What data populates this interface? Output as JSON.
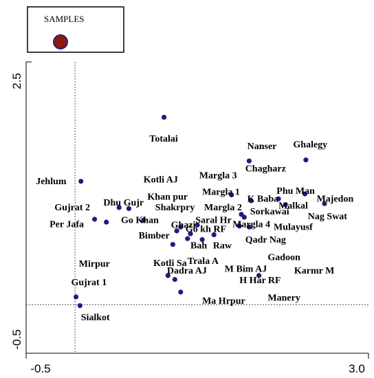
{
  "chart_data": {
    "type": "scatter",
    "title": "",
    "xlabel": "",
    "ylabel": "",
    "xlim": [
      -0.5,
      3.0
    ],
    "ylim": [
      -0.5,
      2.5
    ],
    "x_ticks": [
      "-0.5",
      "3.0"
    ],
    "y_ticks": [
      "2.5",
      "-0.5"
    ],
    "reference_lines": {
      "x": 0.0,
      "y": 0.0
    },
    "grid": false,
    "legend": {
      "title": "SAMPLES",
      "placement": "top-left",
      "marker_color": "#8b1a10"
    },
    "marker_color": "#2a1580",
    "points": [
      {
        "label": "Totalai",
        "x": 0.91,
        "y": 1.93
      },
      {
        "label": "Jehlum",
        "x": 0.06,
        "y": 1.27
      },
      {
        "label": "Ghalegy",
        "x": 2.36,
        "y": 1.49
      },
      {
        "label": "Nanser",
        "x": 1.78,
        "y": 1.48
      },
      {
        "label": "Majedon",
        "x": 2.55,
        "y": 1.04
      },
      {
        "label": "Phu Man",
        "x": 2.35,
        "y": 1.14
      },
      {
        "label": "Malkal",
        "x": 2.15,
        "y": 1.03
      },
      {
        "label": "K Baba",
        "x": 1.8,
        "y": 1.07
      },
      {
        "label": "Nag Swat",
        "x": 2.08,
        "y": 1.09
      },
      {
        "label": "Margla 1",
        "x": 1.6,
        "y": 1.13
      },
      {
        "label": "Gujrat 2",
        "x": 0.2,
        "y": 0.88
      },
      {
        "label": "Per Jafa",
        "x": 0.32,
        "y": 0.85
      },
      {
        "label": "Dhu Gujr",
        "x": 0.45,
        "y": 1.0
      },
      {
        "label": "Go Khan",
        "x": 0.55,
        "y": 0.99
      },
      {
        "label": "Khan pur",
        "x": 0.7,
        "y": 0.87
      },
      {
        "label": "Sorkawai",
        "x": 1.7,
        "y": 0.93
      },
      {
        "label": "Margla 2",
        "x": 1.73,
        "y": 0.9
      },
      {
        "label": "Mulayusf",
        "x": 1.78,
        "y": 0.8
      },
      {
        "label": "Margla 4",
        "x": 1.68,
        "y": 0.81
      },
      {
        "label": "Shakrpry",
        "x": 1.25,
        "y": 0.82
      },
      {
        "label": "Saral Hr",
        "x": 1.18,
        "y": 0.73
      },
      {
        "label": "Ghazi",
        "x": 1.08,
        "y": 0.8
      },
      {
        "label": "Go kh RF",
        "x": 1.3,
        "y": 0.67
      },
      {
        "label": "Bimber",
        "x": 1.0,
        "y": 0.62
      },
      {
        "label": "Raw",
        "x": 1.42,
        "y": 0.72
      },
      {
        "label": "Bah",
        "x": 1.15,
        "y": 0.68
      },
      {
        "label": "Qadr Nag",
        "x": 1.88,
        "y": 0.3
      },
      {
        "label": "Trala A",
        "x": 1.04,
        "y": 0.76
      },
      {
        "label": "Kotli Sa",
        "x": 0.95,
        "y": 0.3
      },
      {
        "label": "Dadra AJ",
        "x": 1.02,
        "y": 0.26
      },
      {
        "label": "Mirpur",
        "x": 1.08,
        "y": 0.13
      },
      {
        "label": "Gujrat 1",
        "x": 0.01,
        "y": 0.08
      },
      {
        "label": "Sialkot",
        "x": 0.05,
        "y": -0.01
      }
    ],
    "labels": [
      {
        "text": "Totalai",
        "x": 0.76,
        "y": 1.68
      },
      {
        "text": "Kotli AJ",
        "x": 0.7,
        "y": 1.26
      },
      {
        "text": "Margla 3",
        "x": 1.27,
        "y": 1.3
      },
      {
        "text": "Nanser",
        "x": 1.76,
        "y": 1.6
      },
      {
        "text": "Ghalegy",
        "x": 2.23,
        "y": 1.62
      },
      {
        "text": "Chagharz",
        "x": 1.74,
        "y": 1.37
      },
      {
        "text": "Jehlum",
        "x": -0.4,
        "y": 1.24
      },
      {
        "text": "Margla 1",
        "x": 1.3,
        "y": 1.13
      },
      {
        "text": "Khan pur",
        "x": 0.74,
        "y": 1.08
      },
      {
        "text": "K Baba",
        "x": 1.76,
        "y": 1.06
      },
      {
        "text": "Phu Man",
        "x": 2.06,
        "y": 1.14
      },
      {
        "text": "Majedon",
        "x": 2.47,
        "y": 1.06
      },
      {
        "text": "Malkal",
        "x": 2.08,
        "y": 0.99
      },
      {
        "text": "Dhu Gujr",
        "x": 0.29,
        "y": 1.02
      },
      {
        "text": "Gujrat 2",
        "x": -0.21,
        "y": 0.97
      },
      {
        "text": "Shakrpry",
        "x": 0.82,
        "y": 0.97
      },
      {
        "text": "Margla 2",
        "x": 1.32,
        "y": 0.97
      },
      {
        "text": "Sorkawai",
        "x": 1.79,
        "y": 0.93
      },
      {
        "text": "Nag Swat",
        "x": 2.38,
        "y": 0.88
      },
      {
        "text": "Go Khan",
        "x": 0.47,
        "y": 0.84
      },
      {
        "text": "Per Jafa",
        "x": -0.26,
        "y": 0.8
      },
      {
        "text": "Saral Hr",
        "x": 1.23,
        "y": 0.84
      },
      {
        "text": "Ghazi",
        "x": 0.98,
        "y": 0.79
      },
      {
        "text": "Margla 4",
        "x": 1.61,
        "y": 0.8
      },
      {
        "text": "Mulayusf",
        "x": 2.03,
        "y": 0.77
      },
      {
        "text": "Go kh RF",
        "x": 1.13,
        "y": 0.75
      },
      {
        "text": "Bimber",
        "x": 0.65,
        "y": 0.68
      },
      {
        "text": "Qadr Nag",
        "x": 1.74,
        "y": 0.64
      },
      {
        "text": "Bah",
        "x": 1.18,
        "y": 0.58
      },
      {
        "text": "Raw",
        "x": 1.41,
        "y": 0.58
      },
      {
        "text": "Gadoon",
        "x": 1.97,
        "y": 0.46
      },
      {
        "text": "Trala A",
        "x": 1.15,
        "y": 0.42
      },
      {
        "text": "Kotli Sa",
        "x": 0.8,
        "y": 0.4
      },
      {
        "text": "Mirpur",
        "x": 0.04,
        "y": 0.39
      },
      {
        "text": "M Bim AJ",
        "x": 1.53,
        "y": 0.34
      },
      {
        "text": "Karmr M",
        "x": 2.24,
        "y": 0.32
      },
      {
        "text": "Dadra AJ",
        "x": 0.94,
        "y": 0.32
      },
      {
        "text": "H Har RF",
        "x": 1.68,
        "y": 0.22
      },
      {
        "text": "Gujrat 1",
        "x": -0.04,
        "y": 0.2
      },
      {
        "text": "Manery",
        "x": 1.97,
        "y": 0.04
      },
      {
        "text": "Ma Hrpur",
        "x": 1.3,
        "y": 0.01
      },
      {
        "text": "Sialkot",
        "x": 0.06,
        "y": -0.16
      }
    ]
  }
}
